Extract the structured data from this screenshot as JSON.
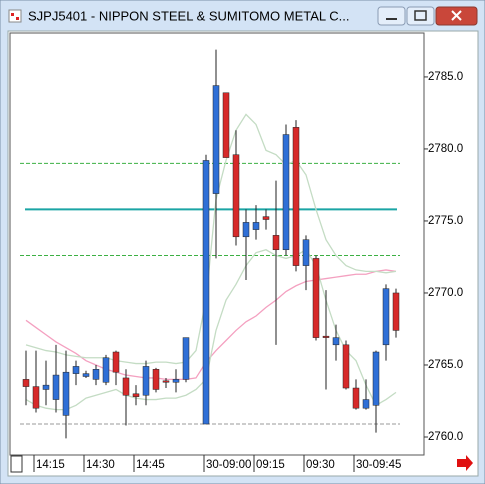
{
  "chart_data": {
    "type": "candlestick",
    "title": "SJPJ5401 - NIPPON STEEL & SUMITOMO METAL C...",
    "categories": [
      null,
      "14:15",
      null,
      null,
      null,
      null,
      "14:30",
      null,
      null,
      null,
      null,
      "14:45",
      null,
      null,
      null,
      null,
      null,
      null,
      "30-09:00",
      null,
      null,
      null,
      null,
      "09:15",
      null,
      null,
      null,
      null,
      "09:30",
      null,
      null,
      null,
      null,
      "30-09:45",
      null,
      null,
      null,
      null
    ],
    "open": [
      2764.0,
      2763.5,
      2763.3,
      2762.6,
      2761.5,
      2764.4,
      2764.2,
      2764.0,
      2763.8,
      2765.9,
      2764.1,
      2763.0,
      2762.9,
      2764.7,
      2763.9,
      2763.8,
      2764.0,
      null,
      2760.9,
      2776.9,
      2783.9,
      2779.6,
      2773.9,
      2774.4,
      2775.3,
      2774.0,
      2773.0,
      2781.5,
      2771.9,
      2772.4,
      2767.0,
      2766.4,
      2766.4,
      2763.4,
      2762.0,
      2762.2,
      2766.4,
      2770.0
    ],
    "high": [
      2766.0,
      2766.0,
      2765.3,
      2766.4,
      2766.0,
      2765.3,
      2764.6,
      2765.0,
      2765.7,
      2766.0,
      2764.7,
      2763.6,
      2765.3,
      2764.8,
      2764.1,
      2764.7,
      2766.9,
      null,
      2779.6,
      2786.9,
      2783.9,
      2781.3,
      2775.8,
      2776.1,
      2775.8,
      2777.8,
      2781.7,
      2782.0,
      2774.0,
      2772.6,
      2770.2,
      2767.8,
      2766.7,
      2764.0,
      2764.0,
      2766.0,
      2770.6,
      2770.3
    ],
    "low": [
      2762.2,
      2761.7,
      2762.2,
      2761.7,
      2759.9,
      2763.6,
      2764.1,
      2763.6,
      2763.6,
      2763.6,
      2760.8,
      2762.2,
      2762.2,
      2763.1,
      2763.4,
      2763.1,
      2763.8,
      null,
      2760.9,
      2772.4,
      2779.4,
      2773.3,
      2770.9,
      2773.7,
      2774.4,
      2766.4,
      2772.6,
      2771.5,
      2770.2,
      2766.7,
      2763.3,
      2765.3,
      2763.3,
      2761.9,
      2761.9,
      2760.3,
      2765.3,
      2766.9
    ],
    "close": [
      2763.5,
      2762.0,
      2763.6,
      2764.3,
      2764.5,
      2764.9,
      2764.4,
      2764.7,
      2765.5,
      2764.5,
      2762.9,
      2762.8,
      2764.9,
      2763.3,
      2763.8,
      2764.0,
      2766.9,
      null,
      2779.2,
      2784.4,
      2779.4,
      2773.9,
      2774.9,
      2774.9,
      2775.1,
      2773.0,
      2781.0,
      2771.9,
      2773.7,
      2766.9,
      2766.9,
      2766.9,
      2763.4,
      2762.0,
      2762.6,
      2765.9,
      2770.3,
      2767.4
    ],
    "up_color": "#2f6fd6",
    "down_color": "#d62a2a",
    "lines": [
      {
        "color": "#f4a0c0",
        "values": [
          2768.1,
          2767.6,
          2767.1,
          2766.6,
          2766.2,
          2765.8,
          2765.3,
          2765.0,
          2764.7,
          2764.5,
          2764.3,
          2764.2,
          2764.1,
          2764.1,
          2764.0,
          2764.0,
          2764.0,
          2764.1,
          2765.2,
          2766.0,
          2766.7,
          2767.4,
          2768.0,
          2768.4,
          2769.0,
          2769.5,
          2770.1,
          2770.5,
          2770.8,
          2770.9,
          2771.0,
          2771.1,
          2771.2,
          2771.3,
          2771.3,
          2771.5,
          2771.6,
          2771.5
        ]
      },
      {
        "color": "#c4dcc4",
        "values": [
          2766.4,
          2766.2,
          2766.0,
          2765.9,
          2765.7,
          2765.6,
          2765.5,
          2765.5,
          2765.5,
          2765.3,
          2765.2,
          2765.1,
          2765.1,
          2765.2,
          2765.2,
          2765.1,
          2765.2,
          2766.0,
          2769.5,
          2776.5,
          2779.2,
          2781.3,
          2782.4,
          2781.7,
          2779.9,
          2779.6,
          2778.9,
          2779.2,
          2778.2,
          2775.8,
          2773.7,
          2772.6,
          2771.9,
          2771.6,
          2771.5,
          2771.5,
          2771.4,
          2771.5
        ]
      },
      {
        "color": "#c4dcc4",
        "values": [
          2762.6,
          2762.2,
          2762.0,
          2761.9,
          2761.9,
          2762.2,
          2762.7,
          2762.9,
          2763.1,
          2763.3,
          2762.9,
          2762.7,
          2762.6,
          2762.6,
          2762.7,
          2762.7,
          2762.9,
          2763.3,
          2764.0,
          2767.4,
          2769.5,
          2770.6,
          2771.9,
          2772.8,
          2773.0,
          2772.6,
          2772.4,
          2772.6,
          2773.0,
          2771.9,
          2769.5,
          2767.4,
          2766.0,
          2765.3,
          2763.6,
          2762.2,
          2762.6,
          2763.1
        ]
      }
    ],
    "levels": [
      {
        "value": 2775.8,
        "color": "#1aa5a5",
        "style": "solid"
      },
      {
        "value": 2779.0,
        "color": "#3cb043",
        "style": "dashed"
      },
      {
        "value": 2772.6,
        "color": "#3cb043",
        "style": "dashed"
      },
      {
        "value": 2760.9,
        "color": "#999999",
        "style": "dashed"
      }
    ],
    "ylim": [
      2758.75,
      2788.05
    ],
    "yticks": [
      {
        "value": 2760,
        "label": "2760.0"
      },
      {
        "value": 2765,
        "label": "2765.0"
      },
      {
        "value": 2770,
        "label": "2770.0"
      },
      {
        "value": 2775,
        "label": "2775.0"
      },
      {
        "value": 2780,
        "label": "2780.0"
      },
      {
        "value": 2785,
        "label": "2785.0"
      }
    ]
  }
}
